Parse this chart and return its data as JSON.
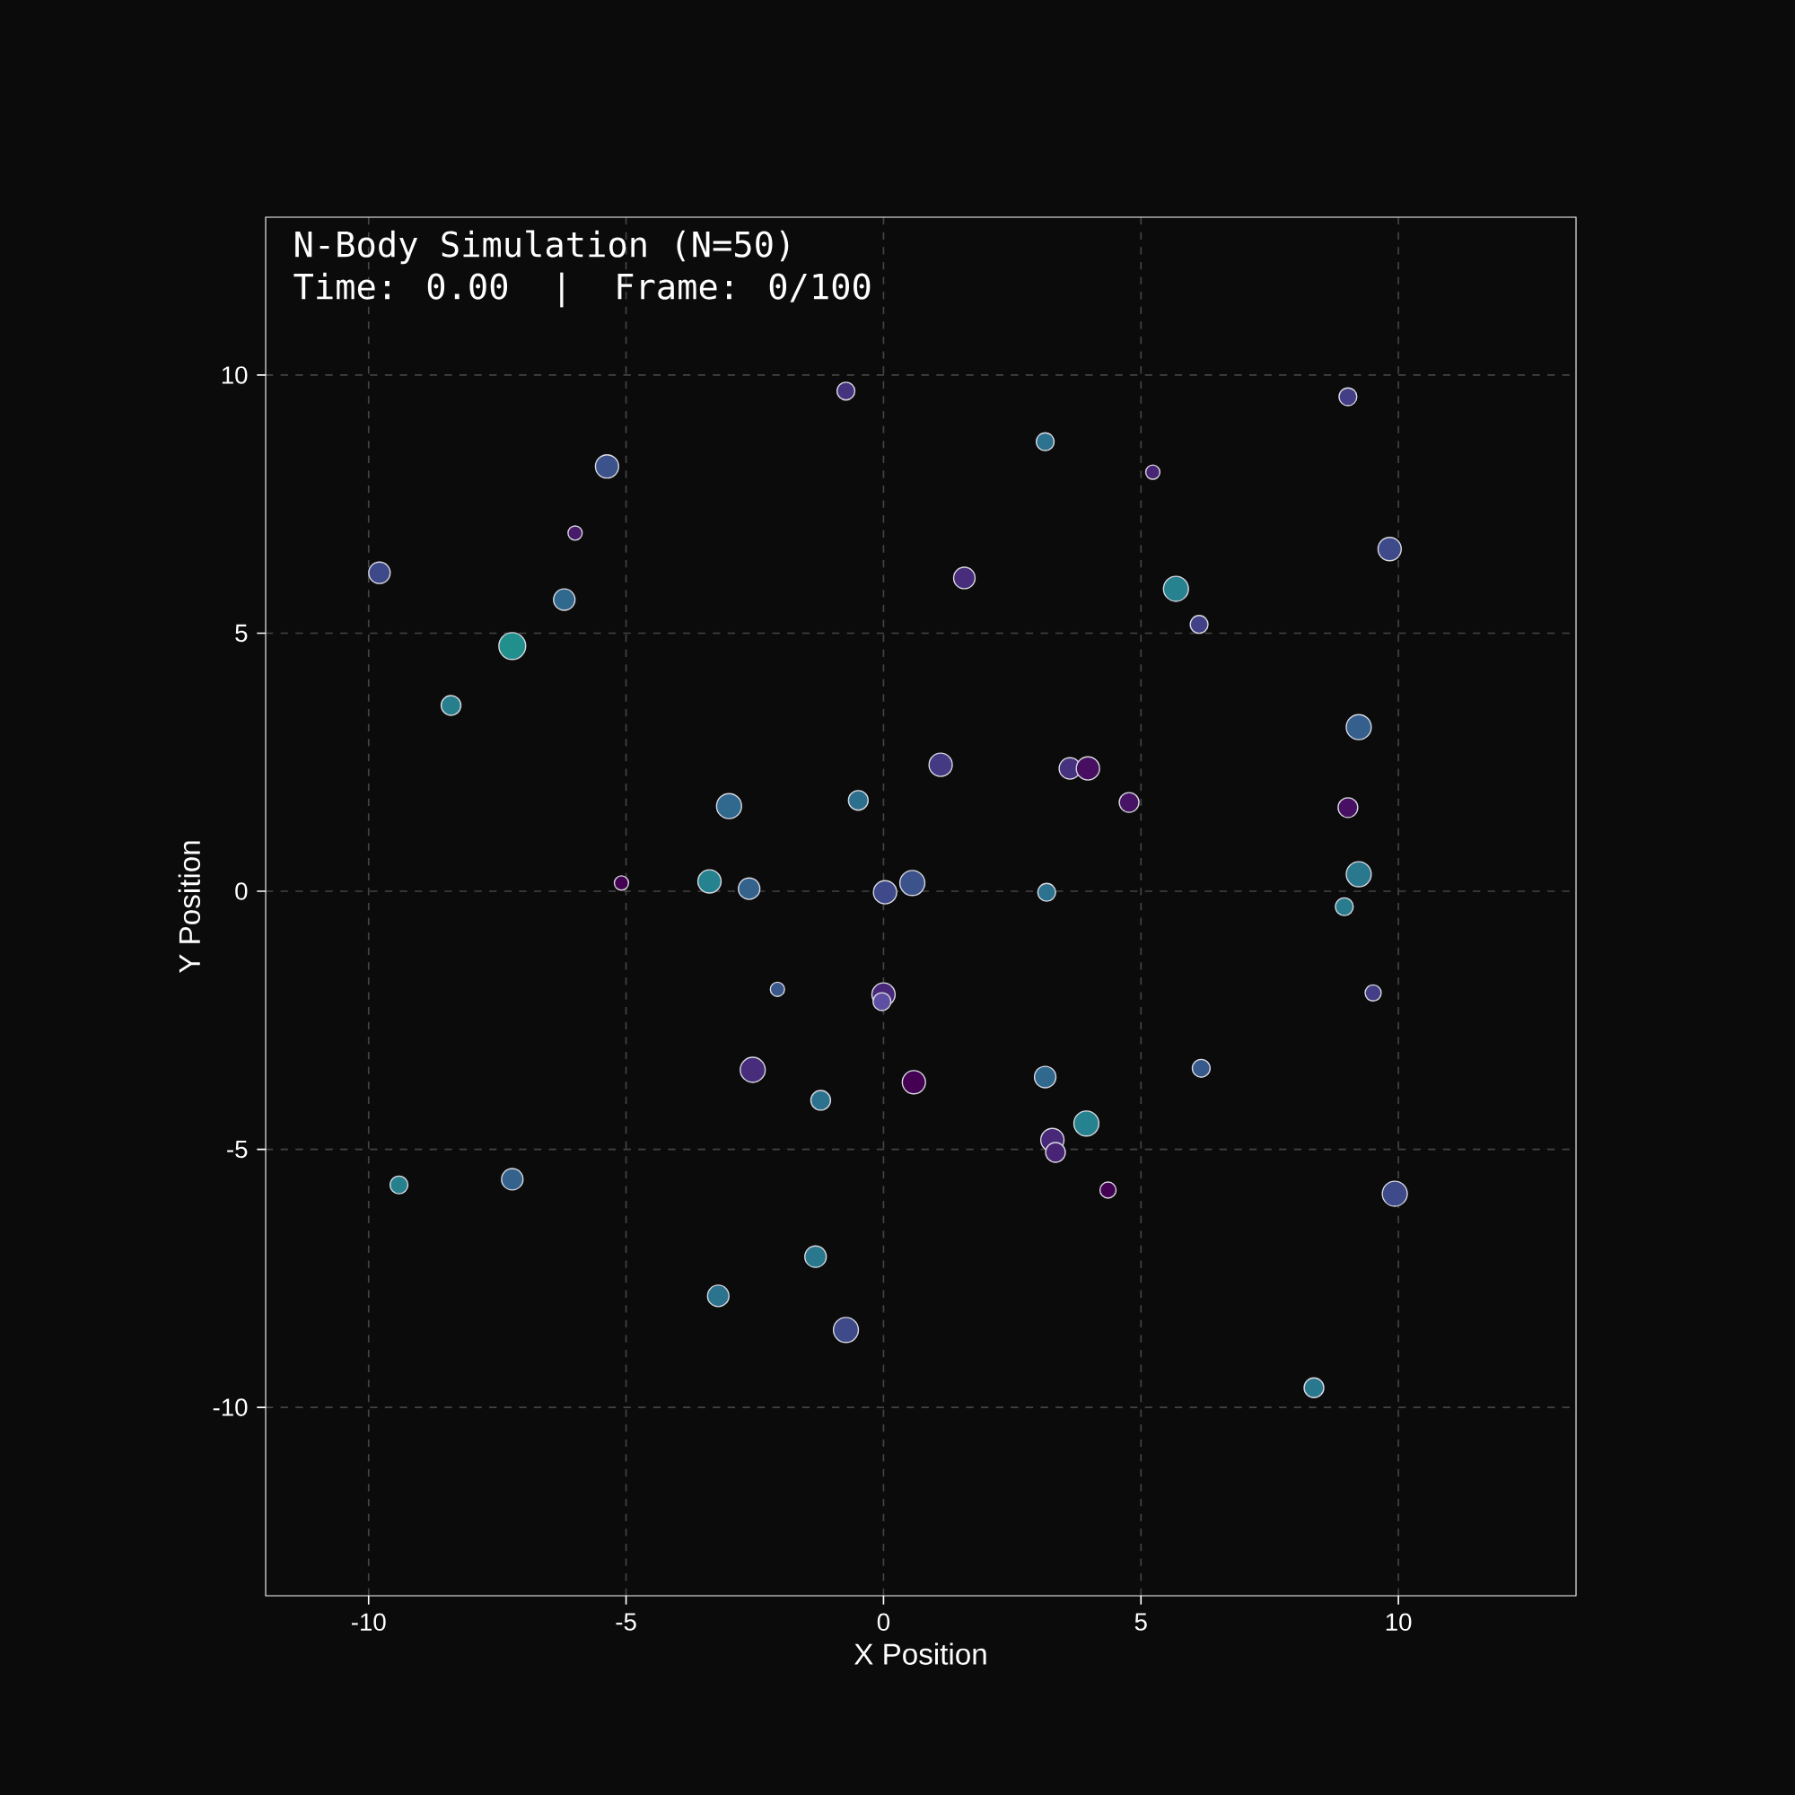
{
  "chart_data": {
    "type": "bubble",
    "title": "N-Body Simulation (N=50)",
    "subtitle": "Time: 0.00  |  Frame: 0/100",
    "xlabel": "X Position",
    "ylabel": "Y Position",
    "x": [
      -0.73,
      9.02,
      -5.37,
      3.14,
      5.23,
      -5.99,
      -9.79,
      1.57,
      9.83,
      5.68,
      -6.2,
      6.13,
      -7.21,
      -8.4,
      9.23,
      1.11,
      3.62,
      3.97,
      4.77,
      -3.0,
      -0.49,
      9.02,
      -5.09,
      -3.38,
      -2.61,
      0.03,
      0.56,
      3.17,
      9.23,
      8.95,
      -2.06,
      0.0,
      -0.03,
      9.51,
      -2.54,
      0.59,
      -1.22,
      3.14,
      6.17,
      3.28,
      3.34,
      3.94,
      4.36,
      -9.41,
      -7.21,
      9.93,
      -1.32,
      -3.21,
      -0.73,
      8.36
    ],
    "values": [
      9.69,
      9.58,
      8.23,
      8.71,
      8.12,
      6.94,
      6.17,
      6.07,
      6.63,
      5.86,
      5.65,
      5.17,
      4.75,
      3.6,
      3.18,
      2.45,
      2.38,
      2.38,
      1.72,
      1.65,
      1.76,
      1.62,
      0.16,
      0.19,
      0.05,
      -0.02,
      0.16,
      -0.02,
      0.33,
      -0.3,
      -1.9,
      -2.0,
      -2.14,
      -1.97,
      -3.46,
      -3.7,
      -4.05,
      -3.6,
      -3.43,
      -4.82,
      -5.06,
      -4.5,
      -5.79,
      -5.69,
      -5.58,
      -5.86,
      -7.08,
      -7.84,
      -8.5,
      -9.62
    ],
    "sizes": [
      0.44,
      0.44,
      0.75,
      0.44,
      0.28,
      0.28,
      0.64,
      0.64,
      0.75,
      0.87,
      0.64,
      0.44,
      1,
      0.54,
      0.87,
      0.75,
      0.64,
      0.75,
      0.54,
      0.87,
      0.54,
      0.54,
      0.28,
      0.75,
      0.64,
      0.75,
      0.87,
      0.44,
      0.87,
      0.44,
      0.28,
      0.75,
      0.44,
      0.36,
      0.87,
      0.75,
      0.54,
      0.64,
      0.44,
      0.75,
      0.54,
      0.87,
      0.36,
      0.44,
      0.64,
      0.87,
      0.64,
      0.64,
      0.87,
      0.54
    ],
    "colors": [
      "#46337e",
      "#433e85",
      "#3b528b",
      "#2c728e",
      "#482475",
      "#481a6c",
      "#3e4989",
      "#472d7b",
      "#3e4a89",
      "#26828e",
      "#31688e",
      "#424086",
      "#21908d",
      "#277f8e",
      "#355f8d",
      "#443983",
      "#46327e",
      "#470e61",
      "#471365",
      "#31688e",
      "#2d708e",
      "#471063",
      "#440154",
      "#26828e",
      "#33638d",
      "#3e4a89",
      "#3b528b",
      "#2c728e",
      "#2a788e",
      "#287c8e",
      "#38588c",
      "#482878",
      "#5e4fa2",
      "#433e85",
      "#472d7b",
      "#440154",
      "#2c728e",
      "#31688e",
      "#38598c",
      "#482878",
      "#482475",
      "#26828e",
      "#440154",
      "#27808e",
      "#33638d",
      "#3e4a89",
      "#2a788e",
      "#2c738e",
      "#3e4a89",
      "#2a788e"
    ],
    "xlim": [
      -12,
      13.45
    ],
    "ylim": [
      -13.65,
      13.06
    ],
    "xticks": [
      -10,
      -5,
      0,
      5,
      10
    ],
    "yticks": [
      -10,
      -5,
      0,
      5,
      10
    ],
    "grid": true
  }
}
